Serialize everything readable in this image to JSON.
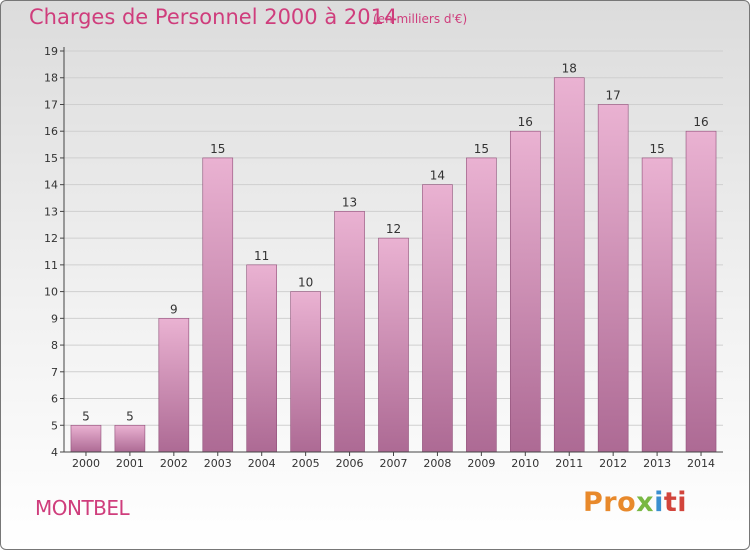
{
  "title": "Charges de Personnel 2000 à 2014",
  "subtitle": "(en milliers d'€)",
  "town": "MONTBEL",
  "logo": {
    "p1": "Pro",
    "p2": "x",
    "p3": "i",
    "p4": "ti"
  },
  "colors": {
    "accent": "#cf3d7c",
    "bar_top": "#eab2d2",
    "bar_bottom": "#ad6a94",
    "bar_stroke": "#8f4f78"
  },
  "chart_data": {
    "type": "bar",
    "categories": [
      "2000",
      "2001",
      "2002",
      "2003",
      "2004",
      "2005",
      "2006",
      "2007",
      "2008",
      "2009",
      "2010",
      "2011",
      "2012",
      "2013",
      "2014"
    ],
    "values": [
      5,
      5,
      9,
      15,
      11,
      10,
      13,
      12,
      14,
      15,
      16,
      18,
      17,
      15,
      16
    ],
    "title": "Charges de Personnel 2000 à 2014",
    "xlabel": "",
    "ylabel": "",
    "ylim": [
      4,
      19
    ],
    "yticks": [
      4,
      5,
      6,
      7,
      8,
      9,
      10,
      11,
      12,
      13,
      14,
      15,
      16,
      17,
      18,
      19
    ],
    "grid": "horizontal"
  }
}
